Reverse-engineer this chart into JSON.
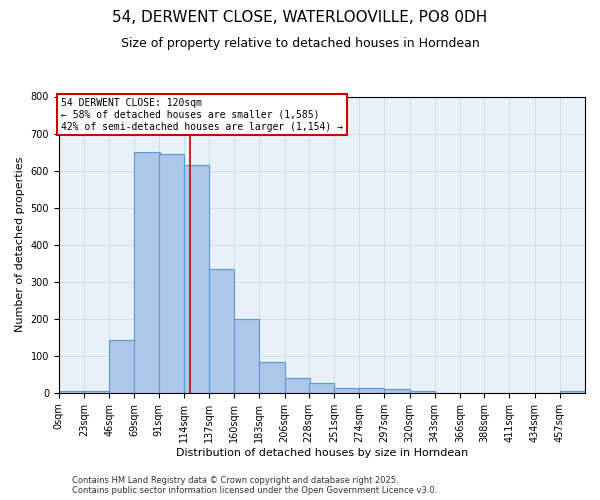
{
  "title": "54, DERWENT CLOSE, WATERLOOVILLE, PO8 0DH",
  "subtitle": "Size of property relative to detached houses in Horndean",
  "xlabel": "Distribution of detached houses by size in Horndean",
  "ylabel": "Number of detached properties",
  "bin_labels": [
    "0sqm",
    "23sqm",
    "46sqm",
    "69sqm",
    "91sqm",
    "114sqm",
    "137sqm",
    "160sqm",
    "183sqm",
    "206sqm",
    "228sqm",
    "251sqm",
    "274sqm",
    "297sqm",
    "320sqm",
    "343sqm",
    "366sqm",
    "388sqm",
    "411sqm",
    "434sqm",
    "457sqm"
  ],
  "bar_heights": [
    5,
    5,
    143,
    650,
    645,
    615,
    335,
    200,
    83,
    40,
    27,
    12,
    12,
    10,
    5,
    0,
    0,
    0,
    0,
    0,
    5
  ],
  "bin_width": 23,
  "bin_starts": [
    0,
    23,
    46,
    69,
    91,
    114,
    137,
    160,
    183,
    206,
    228,
    251,
    274,
    297,
    320,
    343,
    366,
    388,
    411,
    434,
    457
  ],
  "bar_color": "#aec6e8",
  "bar_edge_color": "#5b9bd5",
  "property_size": 120,
  "vline_color": "#cc0000",
  "annotation_text": "54 DERWENT CLOSE: 120sqm\n← 58% of detached houses are smaller (1,585)\n42% of semi-detached houses are larger (1,154) →",
  "annotation_box_color": "#ffffff",
  "annotation_box_edge": "#cc0000",
  "ylim": [
    0,
    800
  ],
  "yticks": [
    0,
    100,
    200,
    300,
    400,
    500,
    600,
    700,
    800
  ],
  "grid_color": "#c8d8e8",
  "bg_color": "#e8f0f8",
  "footer_line1": "Contains HM Land Registry data © Crown copyright and database right 2025.",
  "footer_line2": "Contains public sector information licensed under the Open Government Licence v3.0.",
  "title_fontsize": 11,
  "subtitle_fontsize": 9,
  "xlabel_fontsize": 8,
  "ylabel_fontsize": 8,
  "tick_fontsize": 7,
  "annotation_fontsize": 7,
  "footer_fontsize": 6
}
